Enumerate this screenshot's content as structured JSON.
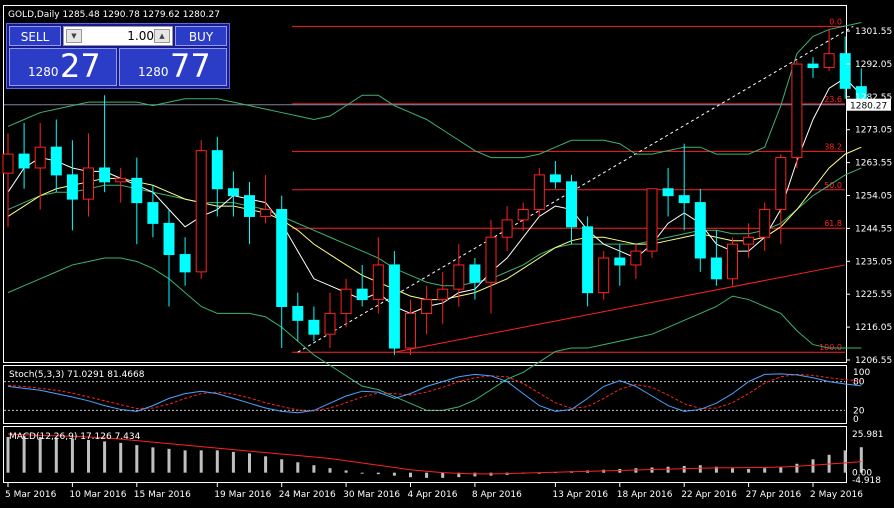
{
  "chart_title": "GOLD,Daily  1285.48 1290.78 1279.62 1280.27",
  "trade_panel": {
    "sell_label": "SELL",
    "buy_label": "BUY",
    "lot": "1.00",
    "sell_prefix": "1280",
    "sell_big": "27",
    "buy_prefix": "1280",
    "buy_big": "77"
  },
  "current_price_label": "1280.27",
  "stoch_label": "Stoch(5,3,3) 71.0291 81.4668",
  "macd_label": "MACD(12,26,9) 17.126 7.434",
  "colors": {
    "bull": "#000000",
    "bear": "#00ffff",
    "candle_outline": "#ff2020",
    "fib": "#ff2020",
    "ma_fast": "#ffffff",
    "ma_slow": "#ffff80",
    "bands": "#3cb371",
    "stoch_main": "#4aa3ff",
    "stoch_signal": "#ff2020",
    "macd_hist": "#c0c0c0",
    "macd_signal": "#ff2020"
  },
  "chart_data": {
    "type": "candlestick",
    "price_axis": {
      "min": 1206.55,
      "max": 1301.55,
      "ticks": [
        "1301.55",
        "1292.05",
        "1282.55",
        "1273.05",
        "1263.55",
        "1254.05",
        "1244.55",
        "1235.05",
        "1225.55",
        "1216.05",
        "1206.55"
      ]
    },
    "x_labels": [
      "5 Mar 2016",
      "10 Mar 2016",
      "15 Mar 2016",
      "19 Mar 2016",
      "24 Mar 2016",
      "30 Mar 2016",
      "4 Apr 2016",
      "8 Apr 2016",
      "13 Apr 2016",
      "18 Apr 2016",
      "22 Apr 2016",
      "27 Apr 2016",
      "2 May 2016"
    ],
    "fibonacci": {
      "levels": [
        "0.0",
        "23.6",
        "38.2",
        "50.0",
        "61.8",
        "100.0"
      ],
      "prices": [
        1302.9,
        1280.5,
        1266.8,
        1255.7,
        1244.6,
        1208.8
      ]
    },
    "candles": [
      {
        "o": 1260.5,
        "h": 1272,
        "l": 1245,
        "c": 1266
      },
      {
        "o": 1266,
        "h": 1275,
        "l": 1256,
        "c": 1262
      },
      {
        "o": 1262,
        "h": 1275,
        "l": 1250,
        "c": 1268
      },
      {
        "o": 1268,
        "h": 1276,
        "l": 1255,
        "c": 1260
      },
      {
        "o": 1260,
        "h": 1270,
        "l": 1244,
        "c": 1253
      },
      {
        "o": 1253,
        "h": 1272,
        "l": 1248,
        "c": 1262
      },
      {
        "o": 1262,
        "h": 1283,
        "l": 1255,
        "c": 1258
      },
      {
        "o": 1258,
        "h": 1262,
        "l": 1252,
        "c": 1259
      },
      {
        "o": 1259,
        "h": 1265,
        "l": 1240,
        "c": 1252
      },
      {
        "o": 1252,
        "h": 1257,
        "l": 1242,
        "c": 1246
      },
      {
        "o": 1246,
        "h": 1250,
        "l": 1222,
        "c": 1237
      },
      {
        "o": 1237,
        "h": 1242,
        "l": 1228,
        "c": 1232
      },
      {
        "o": 1232,
        "h": 1270,
        "l": 1230,
        "c": 1267
      },
      {
        "o": 1267,
        "h": 1271,
        "l": 1248,
        "c": 1256
      },
      {
        "o": 1256,
        "h": 1261,
        "l": 1248,
        "c": 1254
      },
      {
        "o": 1254,
        "h": 1258,
        "l": 1240,
        "c": 1248
      },
      {
        "o": 1248,
        "h": 1260,
        "l": 1246,
        "c": 1250
      },
      {
        "o": 1250,
        "h": 1254,
        "l": 1210,
        "c": 1222
      },
      {
        "o": 1222,
        "h": 1226,
        "l": 1212,
        "c": 1218
      },
      {
        "o": 1218,
        "h": 1222,
        "l": 1212,
        "c": 1214
      },
      {
        "o": 1214,
        "h": 1226,
        "l": 1210,
        "c": 1220
      },
      {
        "o": 1220,
        "h": 1230,
        "l": 1216,
        "c": 1227
      },
      {
        "o": 1227,
        "h": 1234,
        "l": 1222,
        "c": 1224
      },
      {
        "o": 1224,
        "h": 1242,
        "l": 1220,
        "c": 1234
      },
      {
        "o": 1234,
        "h": 1238,
        "l": 1208,
        "c": 1210
      },
      {
        "o": 1210,
        "h": 1224,
        "l": 1208,
        "c": 1220
      },
      {
        "o": 1220,
        "h": 1228,
        "l": 1214,
        "c": 1224
      },
      {
        "o": 1224,
        "h": 1232,
        "l": 1217,
        "c": 1227
      },
      {
        "o": 1227,
        "h": 1240,
        "l": 1222,
        "c": 1234
      },
      {
        "o": 1234,
        "h": 1236,
        "l": 1224,
        "c": 1229
      },
      {
        "o": 1229,
        "h": 1247,
        "l": 1220,
        "c": 1242
      },
      {
        "o": 1242,
        "h": 1251,
        "l": 1238,
        "c": 1247
      },
      {
        "o": 1247,
        "h": 1252,
        "l": 1244,
        "c": 1250
      },
      {
        "o": 1250,
        "h": 1262,
        "l": 1248,
        "c": 1260
      },
      {
        "o": 1260,
        "h": 1264,
        "l": 1256,
        "c": 1258
      },
      {
        "o": 1258,
        "h": 1260,
        "l": 1240,
        "c": 1245
      },
      {
        "o": 1245,
        "h": 1248,
        "l": 1222,
        "c": 1226
      },
      {
        "o": 1226,
        "h": 1238,
        "l": 1224,
        "c": 1236
      },
      {
        "o": 1236,
        "h": 1240,
        "l": 1228,
        "c": 1234
      },
      {
        "o": 1234,
        "h": 1240,
        "l": 1230,
        "c": 1238
      },
      {
        "o": 1238,
        "h": 1256,
        "l": 1236,
        "c": 1256
      },
      {
        "o": 1256,
        "h": 1262,
        "l": 1248,
        "c": 1254
      },
      {
        "o": 1254,
        "h": 1269,
        "l": 1244,
        "c": 1252
      },
      {
        "o": 1252,
        "h": 1256,
        "l": 1232,
        "c": 1236
      },
      {
        "o": 1236,
        "h": 1244,
        "l": 1228,
        "c": 1230
      },
      {
        "o": 1230,
        "h": 1242,
        "l": 1228,
        "c": 1240
      },
      {
        "o": 1240,
        "h": 1246,
        "l": 1236,
        "c": 1242
      },
      {
        "o": 1242,
        "h": 1252,
        "l": 1238,
        "c": 1250
      },
      {
        "o": 1250,
        "h": 1266,
        "l": 1240,
        "c": 1265
      },
      {
        "o": 1265,
        "h": 1293,
        "l": 1262,
        "c": 1292
      },
      {
        "o": 1292,
        "h": 1294,
        "l": 1288,
        "c": 1291
      },
      {
        "o": 1291,
        "h": 1302,
        "l": 1290,
        "c": 1295
      },
      {
        "o": 1295,
        "h": 1300,
        "l": 1282,
        "c": 1285
      },
      {
        "o": 1285.48,
        "h": 1290.78,
        "l": 1279.62,
        "c": 1280.27
      }
    ],
    "ma_fast": [
      1255,
      1262,
      1265,
      1264,
      1262,
      1261,
      1261,
      1259,
      1257,
      1255,
      1250,
      1245,
      1248,
      1250,
      1254,
      1253,
      1252,
      1246,
      1238,
      1230,
      1228,
      1226,
      1224,
      1226,
      1222,
      1220,
      1222,
      1223,
      1226,
      1227,
      1232,
      1236,
      1242,
      1248,
      1251,
      1250,
      1244,
      1240,
      1238,
      1236,
      1240,
      1246,
      1249,
      1246,
      1240,
      1238,
      1238,
      1242,
      1250,
      1264,
      1276,
      1285,
      1288,
      1283
    ],
    "ma_slow": [
      1248,
      1251,
      1254,
      1256,
      1257,
      1258,
      1259,
      1259,
      1258,
      1257,
      1255,
      1253,
      1252,
      1251,
      1251,
      1250,
      1249,
      1247,
      1244,
      1240,
      1237,
      1234,
      1231,
      1229,
      1227,
      1225,
      1224,
      1224,
      1225,
      1226,
      1228,
      1230,
      1233,
      1236,
      1239,
      1241,
      1242,
      1242,
      1241,
      1240,
      1240,
      1241,
      1242,
      1243,
      1242,
      1241,
      1241,
      1242,
      1245,
      1250,
      1256,
      1262,
      1266,
      1268
    ],
    "bb_upper": [
      1274,
      1276,
      1278,
      1279,
      1280,
      1281,
      1281,
      1281,
      1281,
      1280,
      1281,
      1282,
      1282,
      1282,
      1281,
      1280,
      1279,
      1278,
      1277,
      1276,
      1277,
      1280,
      1283,
      1283,
      1280,
      1278,
      1276,
      1273,
      1270,
      1267,
      1265,
      1265,
      1265,
      1266,
      1268,
      1270,
      1270,
      1270,
      1269,
      1266,
      1266,
      1267,
      1268,
      1268,
      1266,
      1266,
      1266,
      1268,
      1280,
      1295,
      1300,
      1302,
      1303,
      1304
    ],
    "bb_mid": [
      1250,
      1252,
      1254,
      1255,
      1255,
      1256,
      1257,
      1257,
      1256,
      1255,
      1254,
      1253,
      1252,
      1252,
      1252,
      1251,
      1250,
      1248,
      1246,
      1244,
      1242,
      1240,
      1238,
      1236,
      1233,
      1231,
      1229,
      1228,
      1228,
      1229,
      1230,
      1232,
      1234,
      1237,
      1239,
      1240,
      1240,
      1240,
      1240,
      1240,
      1241,
      1242,
      1243,
      1244,
      1244,
      1243,
      1243,
      1244,
      1246,
      1250,
      1254,
      1257,
      1260,
      1262
    ],
    "bb_lower": [
      1226,
      1228,
      1230,
      1232,
      1234,
      1235,
      1236,
      1236,
      1235,
      1233,
      1230,
      1226,
      1222,
      1220,
      1220,
      1220,
      1219,
      1216,
      1212,
      1208,
      1205,
      1202,
      1199,
      1198,
      1196,
      1194,
      1192,
      1192,
      1193,
      1195,
      1198,
      1201,
      1203,
      1206,
      1209,
      1210,
      1210,
      1211,
      1212,
      1213,
      1214,
      1216,
      1218,
      1220,
      1222,
      1225,
      1224,
      1222,
      1220,
      1215,
      1211,
      1210,
      1210,
      1210
    ],
    "stoch": {
      "levels": [
        80,
        20
      ],
      "axis": [
        0,
        100
      ],
      "main": [
        70,
        66,
        62,
        55,
        48,
        40,
        30,
        22,
        18,
        30,
        45,
        55,
        60,
        55,
        45,
        35,
        25,
        18,
        15,
        20,
        35,
        50,
        60,
        58,
        45,
        55,
        70,
        80,
        90,
        95,
        92,
        80,
        55,
        30,
        18,
        22,
        45,
        70,
        82,
        70,
        50,
        30,
        18,
        22,
        35,
        55,
        80,
        95,
        96,
        94,
        88,
        80,
        75,
        71
      ],
      "signal": [
        72,
        70,
        66,
        62,
        56,
        48,
        40,
        32,
        24,
        25,
        33,
        45,
        55,
        58,
        54,
        46,
        36,
        28,
        21,
        19,
        25,
        36,
        48,
        56,
        55,
        52,
        58,
        68,
        80,
        88,
        92,
        90,
        76,
        56,
        36,
        24,
        28,
        45,
        64,
        74,
        68,
        52,
        34,
        24,
        25,
        36,
        55,
        77,
        90,
        95,
        93,
        88,
        84,
        81
      ]
    },
    "macd": {
      "axis_ticks": [
        "25.981",
        "0.00",
        "-4.918"
      ],
      "range": [
        -4.918,
        25.981
      ],
      "hist": [
        24,
        24.5,
        24,
        23.5,
        23,
        22,
        21,
        20,
        18.5,
        17,
        16,
        15,
        15,
        15,
        14,
        13,
        11,
        9,
        7,
        5,
        3,
        1.5,
        0,
        -1,
        -2,
        -3,
        -3.5,
        -3.5,
        -3,
        -2.5,
        -2,
        -1.5,
        -0.5,
        0,
        0.5,
        1,
        1.5,
        2,
        2.5,
        3,
        3.5,
        4,
        4.5,
        5,
        4,
        3,
        2.5,
        3,
        4,
        6,
        9,
        12,
        15,
        17.1
      ],
      "signal": [
        26,
        25.5,
        25,
        24.8,
        24.5,
        24,
        23.5,
        22.5,
        21.5,
        20.5,
        19.5,
        18.5,
        17.5,
        16.5,
        15.5,
        14.5,
        13.5,
        12.5,
        11.5,
        10.5,
        9.5,
        8,
        6.5,
        5,
        3.5,
        2,
        1,
        0,
        -0.5,
        -0.8,
        -0.8,
        -0.6,
        -0.3,
        0,
        0.3,
        0.6,
        0.9,
        1.2,
        1.5,
        1.8,
        2.1,
        2.4,
        2.7,
        3,
        3.2,
        3.3,
        3.4,
        3.5,
        3.8,
        4.3,
        5,
        5.8,
        6.6,
        7.4
      ]
    },
    "trendline": {
      "from": [
        24,
        1208.8
      ],
      "to": [
        63,
        1234
      ]
    },
    "dashed_line": {
      "from": [
        18,
        1208.8
      ],
      "to": [
        52,
        1302.9
      ]
    }
  }
}
